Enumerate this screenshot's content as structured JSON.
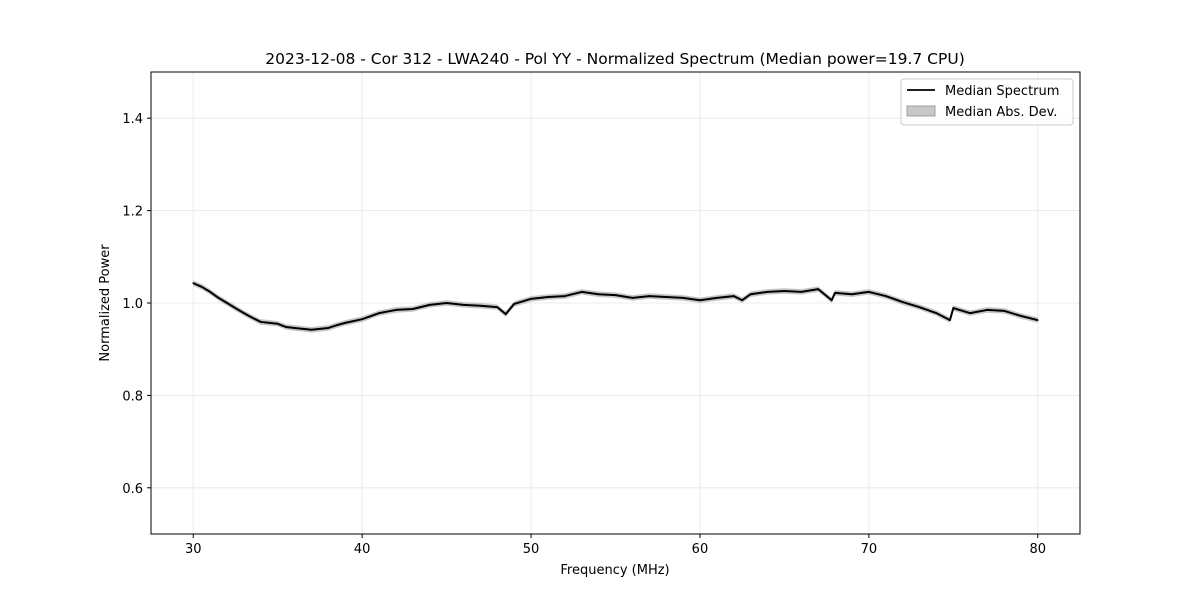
{
  "chart_data": {
    "type": "line",
    "title": "2023-12-08 - Cor 312 - LWA240 - Pol YY - Normalized Spectrum (Median power=19.7 CPU)",
    "xlabel": "Frequency (MHz)",
    "ylabel": "Normalized Power",
    "xlim": [
      27.5,
      82.5
    ],
    "ylim": [
      0.5,
      1.5
    ],
    "xticks": [
      30,
      40,
      50,
      60,
      70,
      80
    ],
    "yticks": [
      0.6,
      0.8,
      1.0,
      1.2,
      1.4
    ],
    "ytick_labels": [
      "0.6",
      "0.8",
      "1.0",
      "1.2",
      "1.4"
    ],
    "grid": true,
    "legend_position": "top-right",
    "legend": [
      "Median Spectrum",
      "Median Abs. Dev."
    ],
    "colors": {
      "line": "#000000",
      "band": "#a0a0a0"
    },
    "mad": 0.006,
    "series": [
      {
        "name": "Median Spectrum",
        "x": [
          30,
          30.5,
          31,
          31.5,
          32,
          32.5,
          33,
          33.5,
          34,
          35,
          35.5,
          36,
          36.5,
          37,
          38,
          38.5,
          39,
          40,
          41,
          42,
          43,
          44,
          45,
          46,
          47,
          48,
          48.5,
          49,
          50,
          51,
          52,
          53,
          54,
          55,
          56,
          57,
          58,
          59,
          60,
          61,
          62,
          62.5,
          63,
          64,
          65,
          66,
          67,
          67.8,
          68,
          69,
          70,
          71,
          72,
          73,
          74,
          74.8,
          75,
          76,
          77,
          78,
          79,
          80
        ],
        "y": [
          1.043,
          1.035,
          1.024,
          1.011,
          1.0,
          0.989,
          0.978,
          0.968,
          0.959,
          0.955,
          0.948,
          0.946,
          0.944,
          0.942,
          0.946,
          0.952,
          0.957,
          0.965,
          0.978,
          0.985,
          0.987,
          0.996,
          1.0,
          0.996,
          0.994,
          0.991,
          0.976,
          0.998,
          1.009,
          1.013,
          1.015,
          1.024,
          1.019,
          1.017,
          1.011,
          1.015,
          1.013,
          1.011,
          1.006,
          1.011,
          1.015,
          1.006,
          1.019,
          1.024,
          1.026,
          1.024,
          1.03,
          1.006,
          1.022,
          1.019,
          1.024,
          1.015,
          1.002,
          0.991,
          0.978,
          0.963,
          0.989,
          0.978,
          0.985,
          0.983,
          0.972,
          0.963
        ]
      }
    ]
  }
}
